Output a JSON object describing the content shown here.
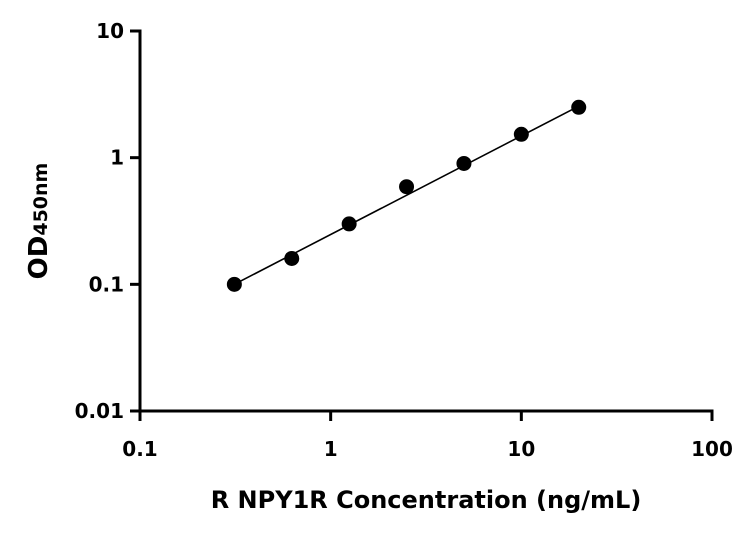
{
  "chart_data": {
    "type": "scatter",
    "x_scale": "log",
    "y_scale": "log",
    "xlabel": "R NPY1R Concentration (ng/mL)",
    "ylabel": {
      "main": "OD",
      "subscript": "450nm"
    },
    "xlim": [
      0.1,
      100
    ],
    "ylim": [
      0.01,
      10
    ],
    "x_ticks": [
      {
        "value": 0.1,
        "label": "0.1"
      },
      {
        "value": 1,
        "label": "1"
      },
      {
        "value": 10,
        "label": "10"
      },
      {
        "value": 100,
        "label": "100"
      }
    ],
    "y_ticks": [
      {
        "value": 0.01,
        "label": "0.01"
      },
      {
        "value": 0.1,
        "label": "0.1"
      },
      {
        "value": 1,
        "label": "1"
      },
      {
        "value": 10,
        "label": "10"
      }
    ],
    "grid": false,
    "series": [
      {
        "name": "R NPY1R",
        "points": [
          {
            "x": 0.3125,
            "y": 0.1
          },
          {
            "x": 0.625,
            "y": 0.16
          },
          {
            "x": 1.25,
            "y": 0.3
          },
          {
            "x": 2.5,
            "y": 0.59
          },
          {
            "x": 5,
            "y": 0.9
          },
          {
            "x": 10,
            "y": 1.53
          },
          {
            "x": 20,
            "y": 2.5
          }
        ]
      }
    ],
    "fit_line": {
      "x_range": [
        0.3125,
        20
      ],
      "y_range": [
        0.1,
        2.55
      ]
    },
    "colors": {
      "marker": "#000000",
      "line": "#000000",
      "axis": "#000000"
    }
  }
}
